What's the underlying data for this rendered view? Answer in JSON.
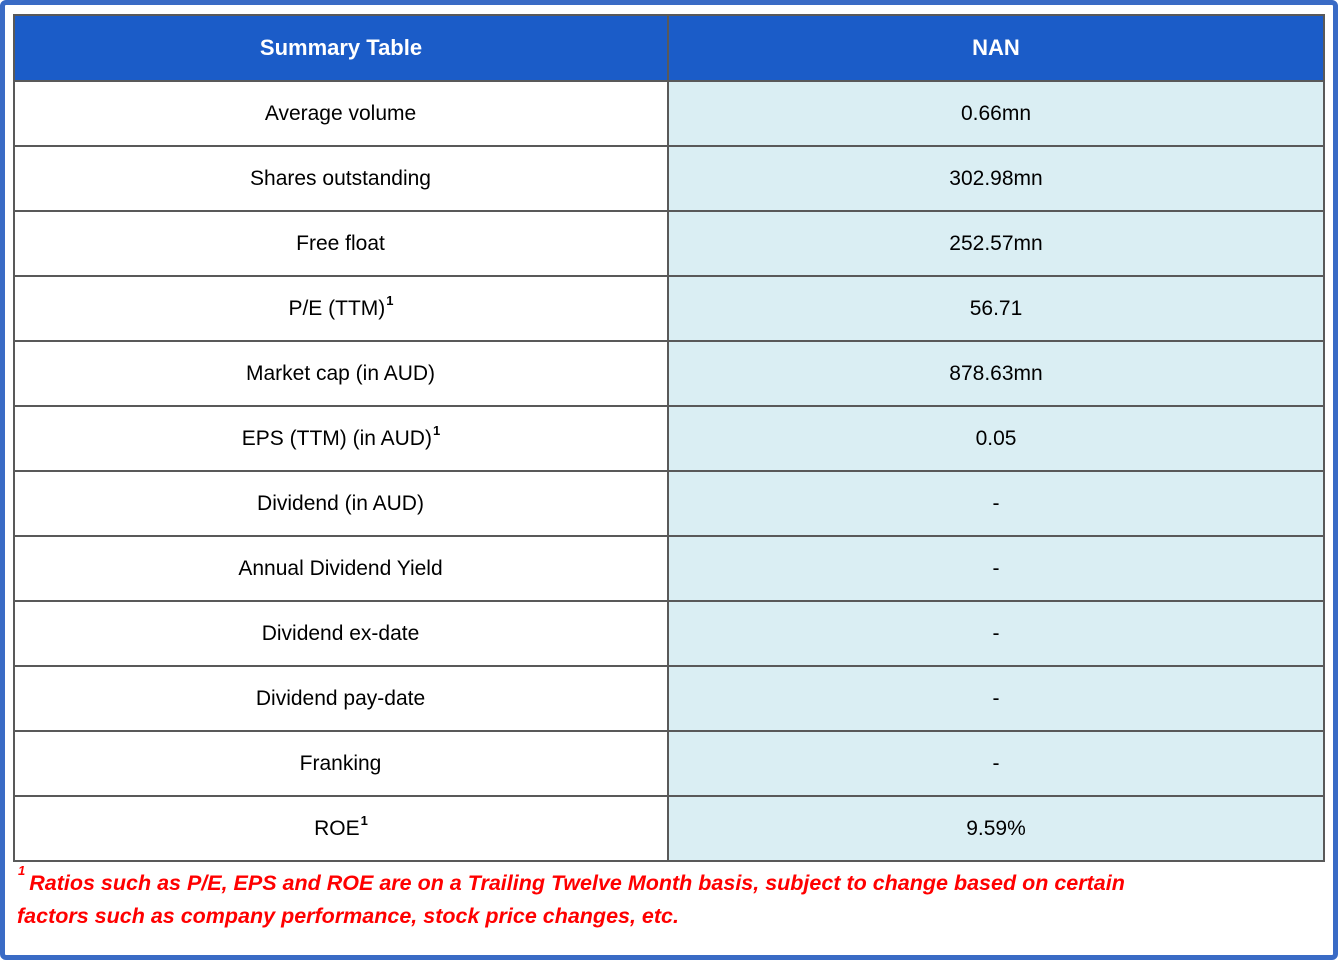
{
  "table": {
    "header": {
      "label_col": "Summary Table",
      "value_col": "NAN"
    },
    "rows": [
      {
        "label": "Average volume",
        "sup": "",
        "value": "0.66mn"
      },
      {
        "label": "Shares outstanding",
        "sup": "",
        "value": "302.98mn"
      },
      {
        "label": "Free float",
        "sup": "",
        "value": "252.57mn"
      },
      {
        "label": "P/E (TTM)",
        "sup": "1",
        "value": "56.71"
      },
      {
        "label": "Market cap (in AUD)",
        "sup": "",
        "value": "878.63mn"
      },
      {
        "label": "EPS (TTM) (in AUD)",
        "sup": "1",
        "value": "0.05"
      },
      {
        "label": "Dividend (in AUD)",
        "sup": "",
        "value": "-"
      },
      {
        "label": "Annual Dividend Yield",
        "sup": "",
        "value": "-"
      },
      {
        "label": "Dividend ex-date",
        "sup": "",
        "value": "-"
      },
      {
        "label": "Dividend pay-date",
        "sup": "",
        "value": "-"
      },
      {
        "label": "Franking",
        "sup": "",
        "value": "-"
      },
      {
        "label": "ROE",
        "sup": "1",
        "value": "9.59%"
      }
    ]
  },
  "footnote": {
    "sup": "1",
    "line1": "Ratios such as P/E, EPS and ROE are on a Trailing Twelve Month basis, subject to change based on certain",
    "line2": "factors such as company performance, stock price changes, etc."
  },
  "colors": {
    "outer_frame_blue": "#3A6BC5",
    "header_blue": "#1B5CC8",
    "value_cell_bg": "#DAEEF3",
    "border_gray": "#595959",
    "footnote_red": "#FF0000"
  }
}
